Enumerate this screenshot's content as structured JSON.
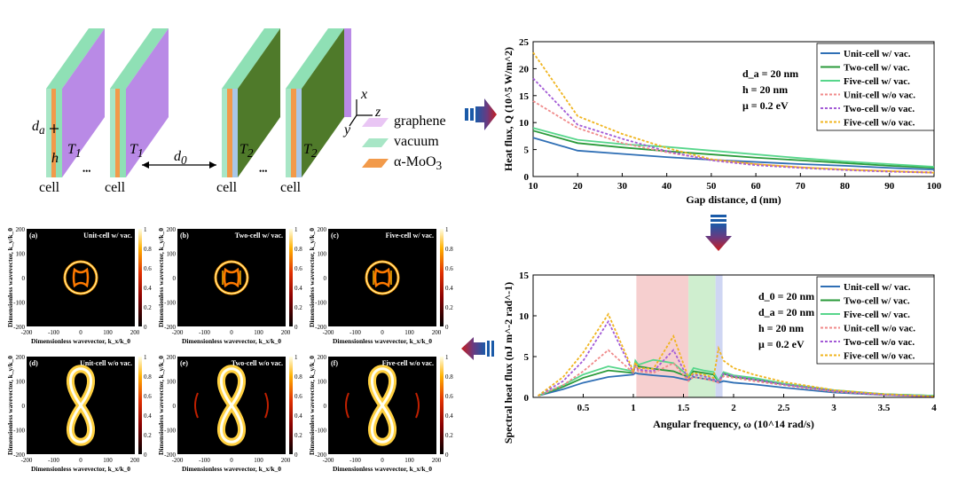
{
  "schematic": {
    "cell_labels": [
      "cell",
      "cell",
      "cell",
      "cell"
    ],
    "ellipsis": "•••",
    "d_a": "d",
    "d_a_sub": "a",
    "h": "h",
    "T1": "T",
    "T1_sub": "1",
    "T2": "T",
    "T2_sub": "2",
    "d0": "d",
    "d0_sub": "0",
    "axes": {
      "x": "x",
      "y": "y",
      "z": "z"
    },
    "legend": [
      {
        "label": "graphene",
        "color": "#e9c6f4"
      },
      {
        "label": "vacuum",
        "color": "#a8e6c6"
      },
      {
        "label": "α-MoO",
        "sub": "3",
        "color": "#f29a4a"
      }
    ]
  },
  "colors": {
    "unit_vac": "#2f6fb5",
    "two_vac": "#2a9a3a",
    "five_vac": "#57d68b",
    "unit_novac": "#f08a8a",
    "two_novac": "#a35bd6",
    "five_novac": "#f0b41e",
    "arrow_blue": "#1a5aa8",
    "arrow_red": "#c81e1e"
  },
  "params_top": [
    "d_a = 20 nm",
    "h = 20 nm",
    "μ = 0.2 eV"
  ],
  "params_spec": [
    "d_0 = 20 nm",
    "d_a = 20 nm",
    "h = 20 nm",
    "μ = 0.2 eV"
  ],
  "series_names": [
    "Unit-cell w/ vac.",
    "Two-cell w/ vac.",
    "Five-cell w/ vac.",
    "Unit-cell w/o vac.",
    "Two-cell w/o vac.",
    "Five-cell w/o vac."
  ],
  "chart_data": [
    {
      "type": "line",
      "title": "",
      "xlabel": "Gap distance, d (nm)",
      "ylabel": "Heat flux, Q (10^5 W/m^2)",
      "xlim": [
        10,
        100
      ],
      "ylim": [
        0,
        25
      ],
      "xticks": [
        10,
        20,
        30,
        40,
        50,
        60,
        70,
        80,
        90,
        100
      ],
      "yticks": [
        0,
        5,
        10,
        15,
        20,
        25
      ],
      "x": [
        10,
        20,
        30,
        40,
        50,
        60,
        70,
        80,
        90,
        100
      ],
      "series": [
        {
          "name": "Unit-cell w/ vac.",
          "values": [
            7.2,
            4.8,
            4.2,
            3.6,
            3.1,
            2.7,
            2.3,
            2.0,
            1.6,
            1.3
          ]
        },
        {
          "name": "Two-cell w/ vac.",
          "values": [
            8.5,
            6.2,
            5.4,
            4.7,
            4.1,
            3.5,
            3.0,
            2.5,
            2.0,
            1.6
          ]
        },
        {
          "name": "Five-cell w/ vac.",
          "values": [
            9.0,
            6.8,
            6.0,
            5.5,
            4.8,
            4.1,
            3.4,
            2.8,
            2.3,
            1.8
          ]
        },
        {
          "name": "Unit-cell w/o vac.",
          "values": [
            14.0,
            9.0,
            6.2,
            4.5,
            3.1,
            2.3,
            1.7,
            1.3,
            1.0,
            0.8
          ]
        },
        {
          "name": "Two-cell w/o vac.",
          "values": [
            18.2,
            9.6,
            7.0,
            4.7,
            3.0,
            2.1,
            1.6,
            1.2,
            0.9,
            0.7
          ]
        },
        {
          "name": "Five-cell w/o vac.",
          "values": [
            23.0,
            11.2,
            7.9,
            5.3,
            3.2,
            2.3,
            1.7,
            1.3,
            1.0,
            0.7
          ]
        }
      ]
    },
    {
      "type": "line",
      "title": "",
      "xlabel": "Angular frequency, ω (10^14 rad/s)",
      "ylabel": "Spectral heat flux (nJ m^-2 rad^-1)",
      "xlim": [
        0,
        4
      ],
      "ylim": [
        0,
        15
      ],
      "xticks": [
        0.5,
        1,
        1.5,
        2,
        2.5,
        3,
        3.5,
        4
      ],
      "yticks": [
        0,
        5,
        10,
        15
      ],
      "bands": [
        {
          "from": 1.03,
          "to": 1.55,
          "color": "#f6cfcf"
        },
        {
          "from": 1.55,
          "to": 1.82,
          "color": "#cfeecf"
        },
        {
          "from": 1.82,
          "to": 1.89,
          "color": "#cfd6f3"
        }
      ],
      "x": [
        0.05,
        0.3,
        0.5,
        0.75,
        1.0,
        1.02,
        1.05,
        1.2,
        1.4,
        1.55,
        1.6,
        1.7,
        1.8,
        1.85,
        1.9,
        2.0,
        2.2,
        2.5,
        3.0,
        3.5,
        4.0
      ],
      "series": [
        {
          "name": "Unit-cell w/ vac.",
          "values": [
            0.2,
            1.0,
            1.8,
            2.5,
            2.8,
            3.0,
            2.9,
            2.7,
            2.5,
            2.1,
            2.5,
            2.3,
            2.1,
            1.8,
            2.0,
            1.8,
            1.6,
            1.2,
            0.6,
            0.3,
            0.1
          ]
        },
        {
          "name": "Two-cell w/ vac.",
          "values": [
            0.2,
            1.3,
            2.4,
            3.3,
            3.0,
            4.2,
            3.8,
            3.5,
            3.2,
            2.5,
            3.2,
            3.0,
            2.8,
            1.9,
            2.9,
            2.5,
            2.2,
            1.6,
            0.8,
            0.4,
            0.2
          ]
        },
        {
          "name": "Five-cell w/ vac.",
          "values": [
            0.2,
            1.5,
            2.8,
            3.8,
            3.2,
            4.5,
            4.0,
            4.6,
            4.2,
            2.6,
            3.6,
            3.3,
            3.1,
            2.0,
            3.1,
            2.7,
            2.4,
            1.7,
            0.9,
            0.4,
            0.2
          ]
        },
        {
          "name": "Unit-cell w/o vac.",
          "values": [
            0.2,
            1.5,
            3.2,
            5.8,
            3.0,
            3.8,
            3.2,
            3.0,
            4.2,
            2.0,
            2.5,
            2.3,
            2.0,
            1.8,
            2.6,
            2.4,
            2.0,
            1.5,
            0.7,
            0.3,
            0.1
          ]
        },
        {
          "name": "Two-cell w/o vac.",
          "values": [
            0.2,
            2.0,
            4.5,
            9.3,
            3.0,
            4.0,
            3.4,
            3.2,
            5.8,
            2.2,
            2.8,
            2.6,
            2.2,
            2.0,
            2.9,
            2.6,
            2.2,
            1.6,
            0.8,
            0.3,
            0.1
          ]
        },
        {
          "name": "Five-cell w/o vac.",
          "values": [
            0.2,
            2.5,
            5.5,
            10.2,
            3.2,
            4.3,
            3.6,
            3.5,
            7.5,
            2.4,
            3.0,
            2.8,
            2.4,
            6.0,
            4.5,
            3.6,
            2.8,
            1.9,
            0.9,
            0.4,
            0.1
          ]
        }
      ]
    },
    {
      "type": "heatmap",
      "panels": [
        {
          "tag": "(a)",
          "title": "Unit-cell w/ vac."
        },
        {
          "tag": "(b)",
          "title": "Two-cell w/ vac."
        },
        {
          "tag": "(c)",
          "title": "Five-cell w/ vac."
        },
        {
          "tag": "(d)",
          "title": "Unit-cell w/o vac."
        },
        {
          "tag": "(e)",
          "title": "Two-cell w/o vac."
        },
        {
          "tag": "(f)",
          "title": "Five-cell w/o vac."
        }
      ],
      "xlabel": "Dimensionless wavevector, k_x/k_0",
      "ylabel": "Dimensionless wavevector, k_y/k_0",
      "xticks": [
        -200,
        -100,
        0,
        100,
        200
      ],
      "yticks": [
        200,
        100,
        0,
        -100,
        -200
      ],
      "colorbar_ticks": [
        0,
        0.2,
        0.4,
        0.6,
        0.8,
        1
      ]
    }
  ]
}
